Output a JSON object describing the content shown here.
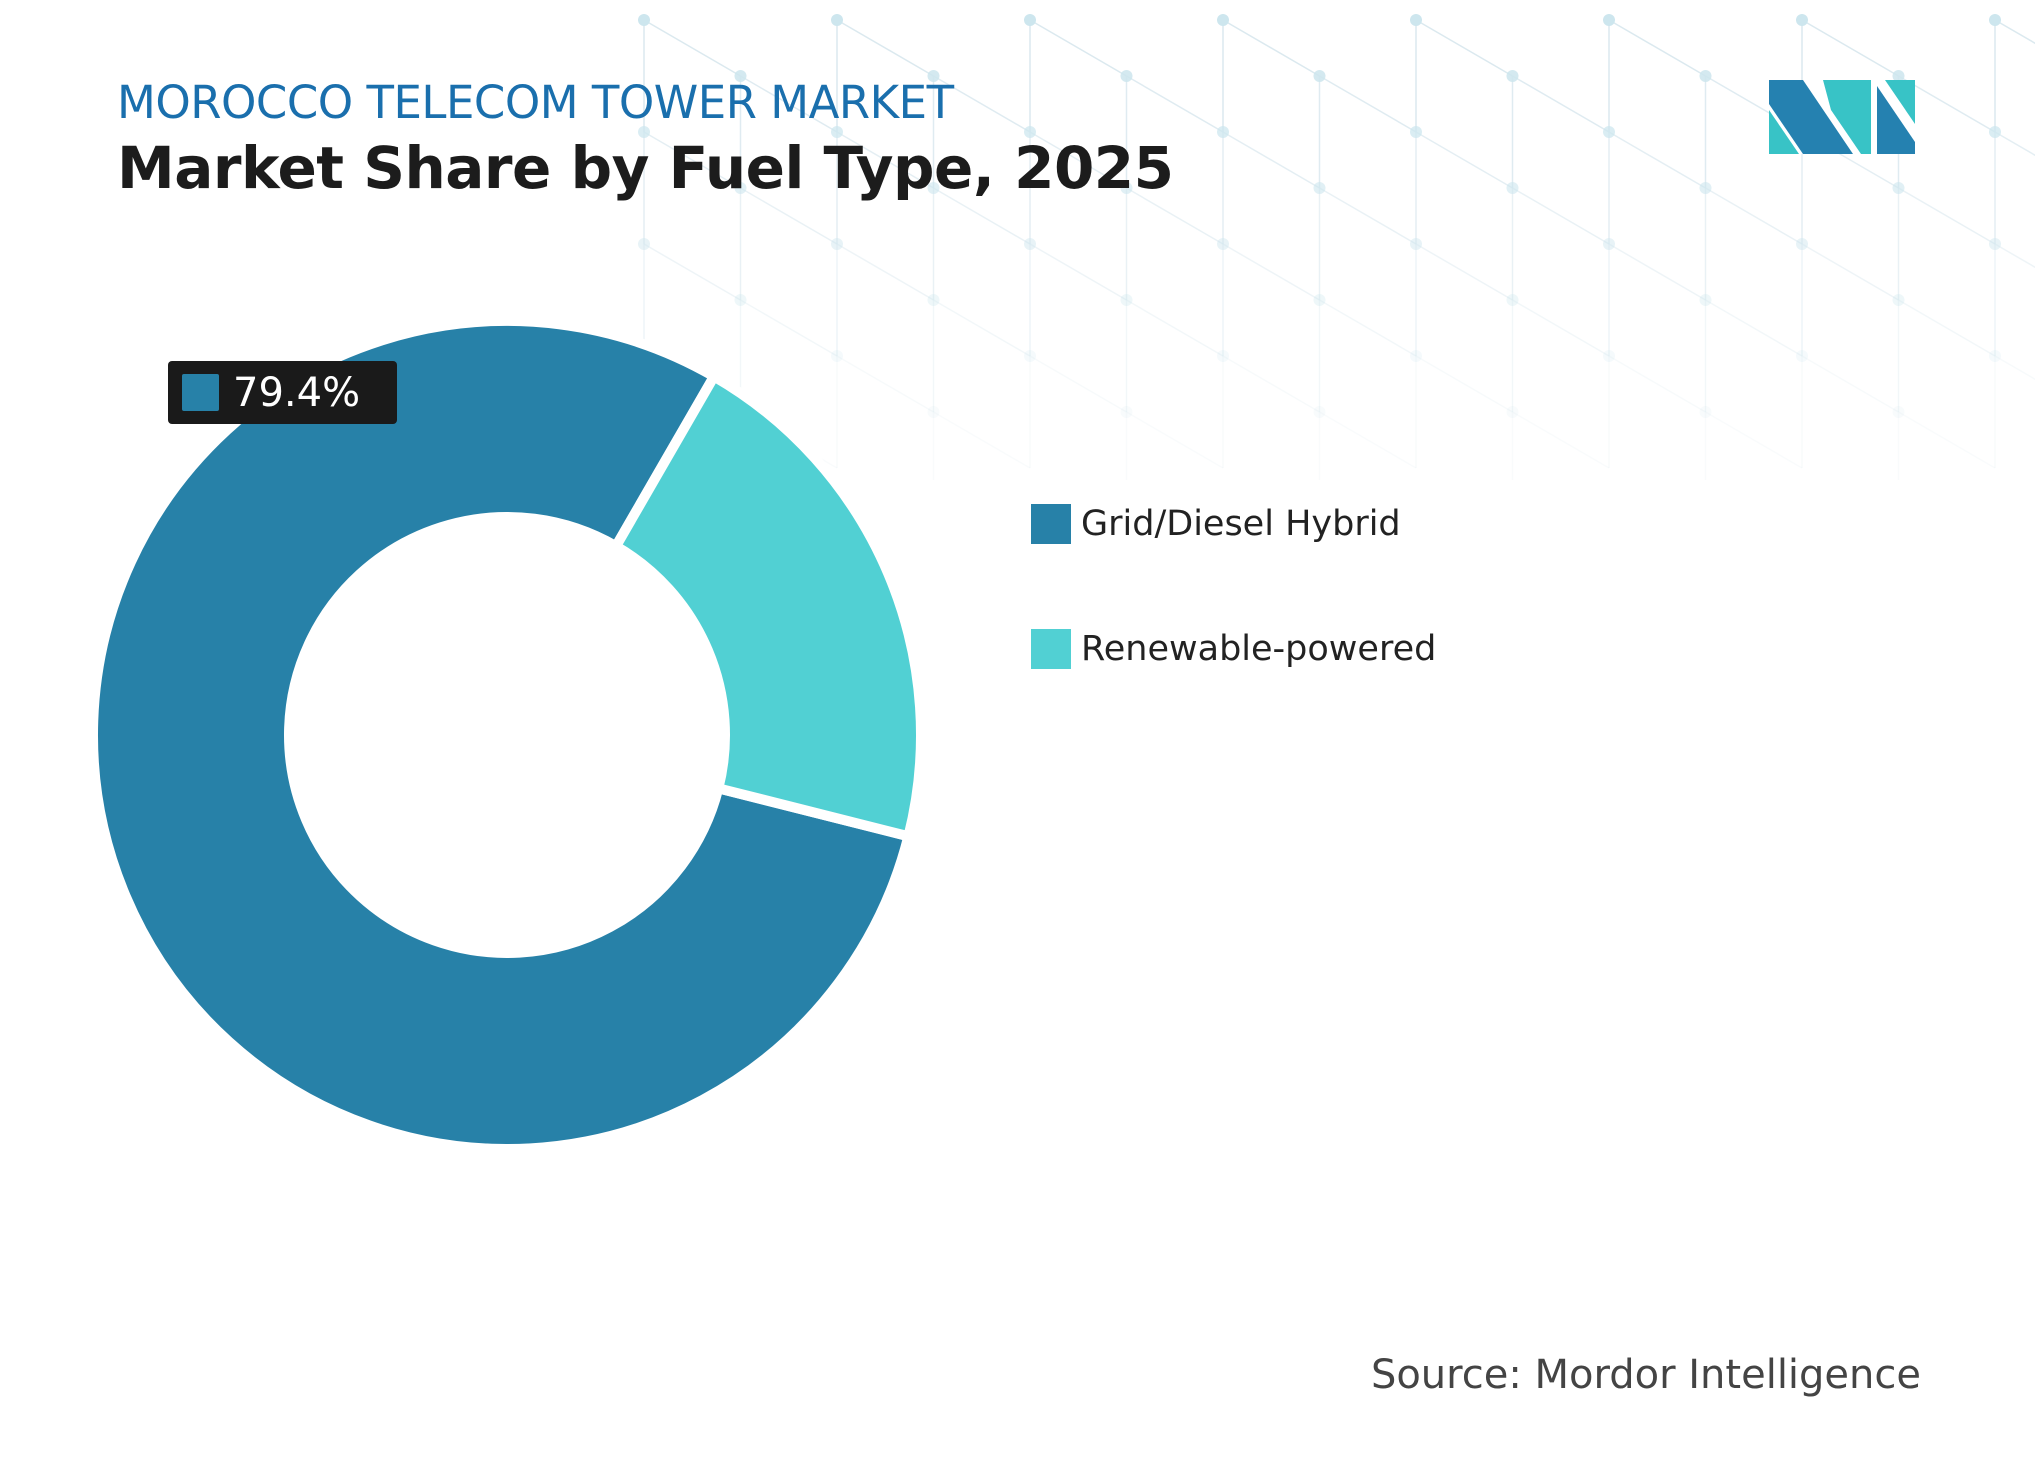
{
  "header": {
    "kicker": "MOROCCO TELECOM TOWER MARKET",
    "title": "Market Share by Fuel Type, 2025"
  },
  "logo": {
    "name": "mordor-intelligence-logo",
    "colors": [
      "#2581b0",
      "#38c3c6"
    ]
  },
  "source": "Source: Mordor Intelligence",
  "chart_data": {
    "type": "pie",
    "variant": "donut",
    "title": "Market Share by Fuel Type, 2025",
    "categories": [
      "Grid/Diesel Hybrid",
      "Renewable-powered"
    ],
    "values": [
      79.4,
      20.6
    ],
    "unit": "%",
    "colors": [
      "#2781a8",
      "#51d0d3"
    ],
    "data_labels": [
      {
        "category": "Grid/Diesel Hybrid",
        "text": "79.4%"
      }
    ],
    "legend_position": "right"
  }
}
